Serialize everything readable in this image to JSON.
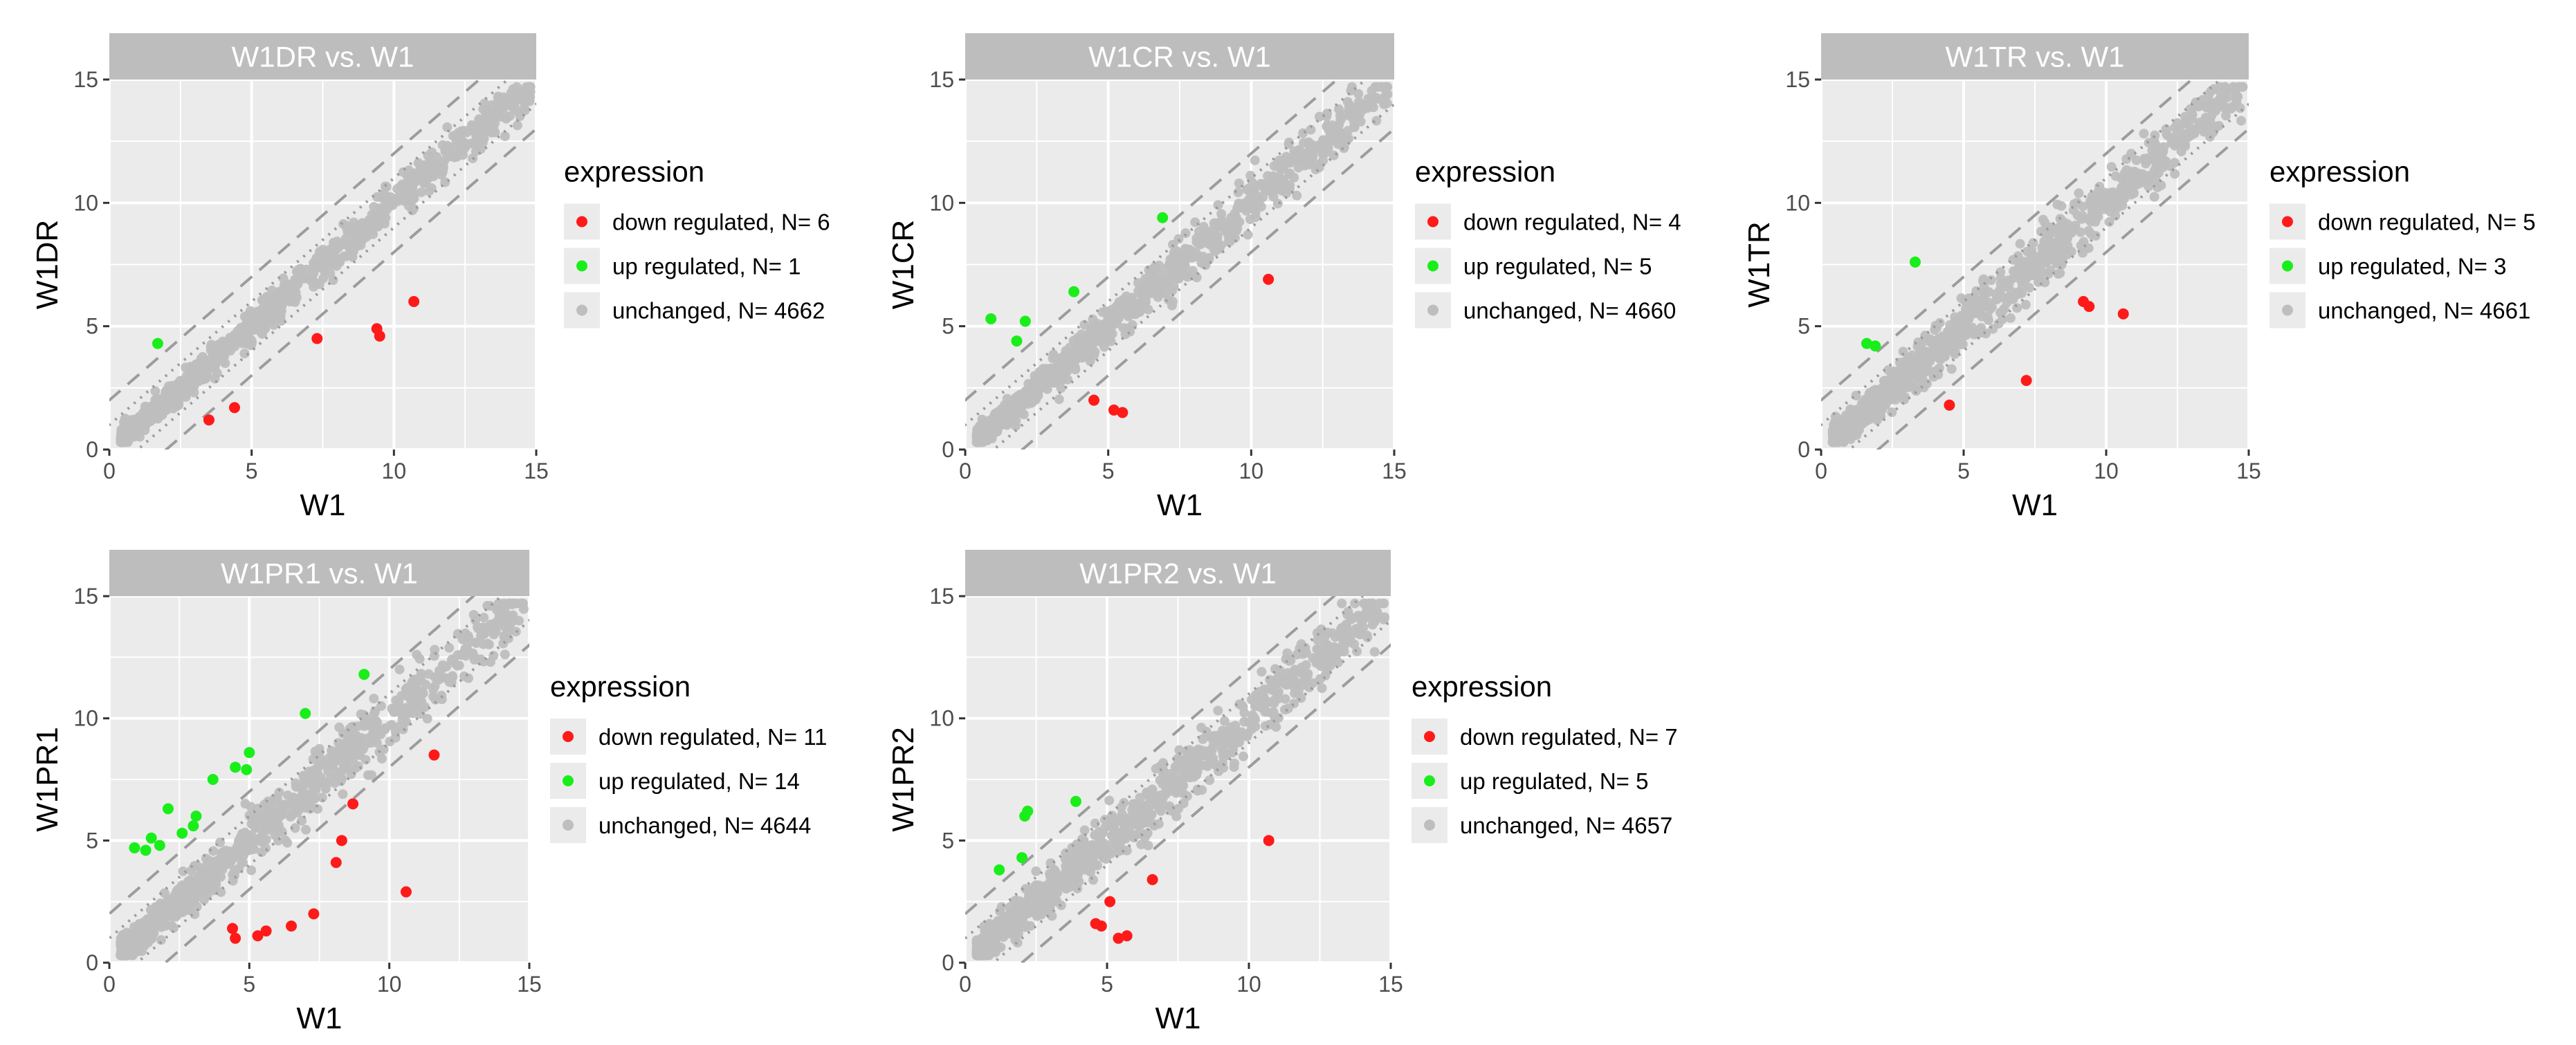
{
  "palette": {
    "panel_bg": "#EBEBEB",
    "strip_bg": "#BDBDBD",
    "grid": "#FFFFFF",
    "down": "#FF1A1A",
    "up": "#1AEE1A",
    "unchanged": "#BEBEBE",
    "guide": "#9C9C9C"
  },
  "chart_data": [
    {
      "type": "scatter",
      "title": "W1DR vs. W1",
      "xlabel": "W1",
      "ylabel": "W1DR",
      "xlim": [
        0,
        15
      ],
      "ylim": [
        0,
        15
      ],
      "xticks": [
        0,
        5,
        10,
        15
      ],
      "yticks": [
        0,
        5,
        10,
        15
      ],
      "legend_title": "expression",
      "legend": [
        {
          "key": "down",
          "label": "down regulated, N= 6"
        },
        {
          "key": "up",
          "label": "up regulated, N= 1"
        },
        {
          "key": "unchanged",
          "label": "unchanged, N= 4662"
        }
      ],
      "guides": {
        "dotted_offset": 1,
        "dashed_offset": 2
      },
      "down": [
        [
          3.5,
          1.2
        ],
        [
          4.4,
          1.7
        ],
        [
          7.3,
          4.5
        ],
        [
          9.4,
          4.9
        ],
        [
          9.5,
          4.6
        ],
        [
          10.7,
          6.0
        ]
      ],
      "up": [
        [
          1.7,
          4.3
        ]
      ],
      "unchanged_spread": 0.5,
      "unchanged_seed": 11
    },
    {
      "type": "scatter",
      "title": "W1CR vs. W1",
      "xlabel": "W1",
      "ylabel": "W1CR",
      "xlim": [
        0,
        15
      ],
      "ylim": [
        0,
        15
      ],
      "xticks": [
        0,
        5,
        10,
        15
      ],
      "yticks": [
        0,
        5,
        10,
        15
      ],
      "legend_title": "expression",
      "legend": [
        {
          "key": "down",
          "label": "down regulated, N= 4"
        },
        {
          "key": "up",
          "label": "up regulated, N= 5"
        },
        {
          "key": "unchanged",
          "label": "unchanged, N= 4660"
        }
      ],
      "guides": {
        "dotted_offset": 1,
        "dashed_offset": 2
      },
      "down": [
        [
          4.5,
          2.0
        ],
        [
          5.2,
          1.6
        ],
        [
          5.5,
          1.5
        ],
        [
          10.6,
          6.9
        ]
      ],
      "up": [
        [
          0.9,
          5.3
        ],
        [
          1.8,
          4.4
        ],
        [
          2.1,
          5.2
        ],
        [
          3.8,
          6.4
        ],
        [
          6.9,
          9.4
        ]
      ],
      "unchanged_spread": 0.55,
      "unchanged_seed": 23
    },
    {
      "type": "scatter",
      "title": "W1TR vs. W1",
      "xlabel": "W1",
      "ylabel": "W1TR",
      "xlim": [
        0,
        15
      ],
      "ylim": [
        0,
        15
      ],
      "xticks": [
        0,
        5,
        10,
        15
      ],
      "yticks": [
        0,
        5,
        10,
        15
      ],
      "legend_title": "expression",
      "legend": [
        {
          "key": "down",
          "label": "down regulated, N= 5"
        },
        {
          "key": "up",
          "label": "up regulated, N= 3"
        },
        {
          "key": "unchanged",
          "label": "unchanged, N= 4661"
        }
      ],
      "guides": {
        "dotted_offset": 1,
        "dashed_offset": 2
      },
      "down": [
        [
          4.5,
          1.8
        ],
        [
          7.2,
          2.8
        ],
        [
          9.2,
          6.0
        ],
        [
          9.4,
          5.8
        ],
        [
          10.6,
          5.5
        ]
      ],
      "up": [
        [
          1.6,
          4.3
        ],
        [
          1.9,
          4.2
        ],
        [
          3.3,
          7.6
        ]
      ],
      "unchanged_spread": 0.7,
      "unchanged_seed": 37
    },
    {
      "type": "scatter",
      "title": "W1PR1 vs. W1",
      "xlabel": "W1",
      "ylabel": "W1PR1",
      "xlim": [
        0,
        15
      ],
      "ylim": [
        0,
        15
      ],
      "xticks": [
        0,
        5,
        10,
        15
      ],
      "yticks": [
        0,
        5,
        10,
        15
      ],
      "legend_title": "expression",
      "legend": [
        {
          "key": "down",
          "label": "down regulated, N= 11"
        },
        {
          "key": "up",
          "label": "up regulated, N= 14"
        },
        {
          "key": "unchanged",
          "label": "unchanged, N= 4644"
        }
      ],
      "guides": {
        "dotted_offset": 1,
        "dashed_offset": 2
      },
      "down": [
        [
          4.4,
          1.4
        ],
        [
          4.5,
          1.0
        ],
        [
          5.3,
          1.1
        ],
        [
          5.6,
          1.3
        ],
        [
          6.5,
          1.5
        ],
        [
          7.3,
          2.0
        ],
        [
          8.1,
          4.1
        ],
        [
          8.3,
          5.0
        ],
        [
          8.7,
          6.5
        ],
        [
          10.6,
          2.9
        ],
        [
          11.6,
          8.5
        ]
      ],
      "up": [
        [
          0.9,
          4.7
        ],
        [
          1.3,
          4.6
        ],
        [
          1.5,
          5.1
        ],
        [
          1.8,
          4.8
        ],
        [
          2.1,
          6.3
        ],
        [
          2.6,
          5.3
        ],
        [
          3.0,
          5.6
        ],
        [
          3.1,
          6.0
        ],
        [
          3.7,
          7.5
        ],
        [
          4.5,
          8.0
        ],
        [
          5.0,
          8.6
        ],
        [
          4.9,
          7.9
        ],
        [
          7.0,
          10.2
        ],
        [
          9.1,
          11.8
        ]
      ],
      "unchanged_spread": 0.7,
      "unchanged_seed": 53
    },
    {
      "type": "scatter",
      "title": "W1PR2 vs. W1",
      "xlabel": "W1",
      "ylabel": "W1PR2",
      "xlim": [
        0,
        15
      ],
      "ylim": [
        0,
        15
      ],
      "xticks": [
        0,
        5,
        10,
        15
      ],
      "yticks": [
        0,
        5,
        10,
        15
      ],
      "legend_title": "expression",
      "legend": [
        {
          "key": "down",
          "label": "down regulated, N= 7"
        },
        {
          "key": "up",
          "label": "up regulated, N= 5"
        },
        {
          "key": "unchanged",
          "label": "unchanged, N= 4657"
        }
      ],
      "guides": {
        "dotted_offset": 1,
        "dashed_offset": 2
      },
      "down": [
        [
          4.6,
          1.6
        ],
        [
          4.8,
          1.5
        ],
        [
          5.1,
          2.5
        ],
        [
          5.4,
          1.0
        ],
        [
          5.7,
          1.1
        ],
        [
          6.6,
          3.4
        ],
        [
          10.7,
          5.0
        ]
      ],
      "up": [
        [
          1.2,
          3.8
        ],
        [
          2.0,
          4.3
        ],
        [
          2.1,
          6.0
        ],
        [
          2.2,
          6.2
        ],
        [
          3.9,
          6.6
        ]
      ],
      "unchanged_spread": 0.75,
      "unchanged_seed": 71
    }
  ]
}
